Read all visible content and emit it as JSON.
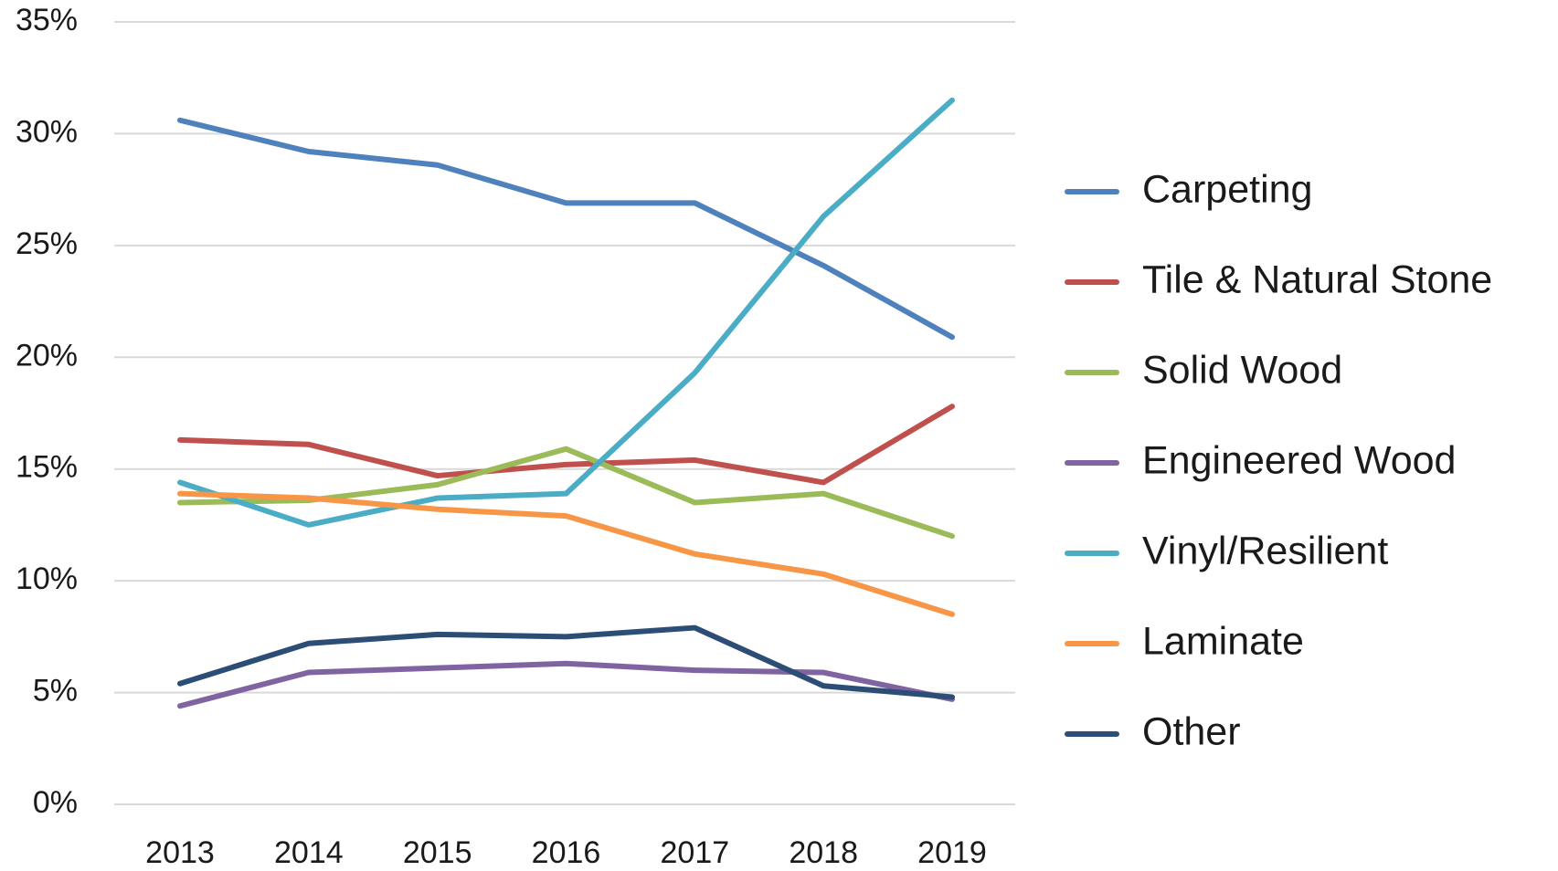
{
  "chart_data": {
    "type": "line",
    "x": [
      "2013",
      "2014",
      "2015",
      "2016",
      "2017",
      "2018",
      "2019"
    ],
    "series": [
      {
        "name": "Carpeting",
        "color": "#4f81bd",
        "values": [
          30.6,
          29.2,
          28.6,
          26.9,
          26.9,
          24.1,
          20.9
        ]
      },
      {
        "name": "Tile & Natural Stone",
        "color": "#c0504d",
        "values": [
          16.3,
          16.1,
          14.7,
          15.2,
          15.4,
          14.4,
          17.8
        ]
      },
      {
        "name": "Solid Wood",
        "color": "#9bbb59",
        "values": [
          13.5,
          13.6,
          14.3,
          15.9,
          13.5,
          13.9,
          12.0
        ]
      },
      {
        "name": "Engineered Wood",
        "color": "#8064a2",
        "values": [
          4.4,
          5.9,
          6.1,
          6.3,
          6.0,
          5.9,
          4.7
        ]
      },
      {
        "name": "Vinyl/Resilient",
        "color": "#4bacc6",
        "values": [
          14.4,
          12.5,
          13.7,
          13.9,
          19.3,
          26.3,
          31.5
        ]
      },
      {
        "name": "Laminate",
        "color": "#f79646",
        "values": [
          13.9,
          13.7,
          13.2,
          12.9,
          11.2,
          10.3,
          8.5
        ]
      },
      {
        "name": "Other",
        "color": "#2c4d75",
        "values": [
          5.4,
          7.2,
          7.6,
          7.5,
          7.9,
          5.3,
          4.8
        ]
      }
    ],
    "ylim": [
      0,
      35
    ],
    "yticks": [
      {
        "value": 0,
        "label": "0%"
      },
      {
        "value": 5,
        "label": "5%"
      },
      {
        "value": 10,
        "label": "10%"
      },
      {
        "value": 15,
        "label": "15%"
      },
      {
        "value": 20,
        "label": "20%"
      },
      {
        "value": 25,
        "label": "25%"
      },
      {
        "value": 30,
        "label": "30%"
      },
      {
        "value": 35,
        "label": "35%"
      }
    ],
    "grid": true,
    "legend": "right"
  }
}
